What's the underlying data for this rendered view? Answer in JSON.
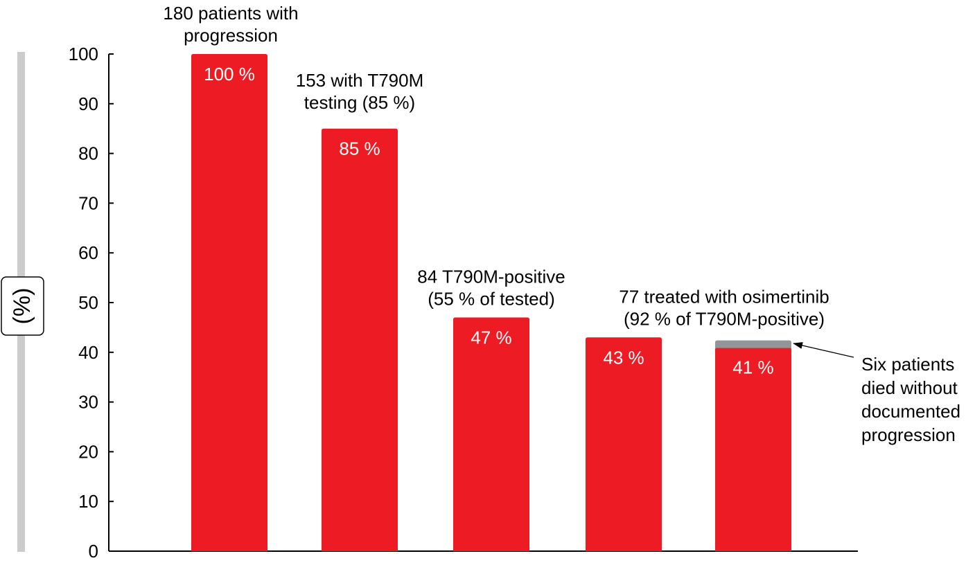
{
  "chart_data": {
    "type": "bar",
    "ylabel": "(%)",
    "ylim": [
      0,
      100
    ],
    "yticks": [
      "0",
      "10",
      "20",
      "30",
      "40",
      "50",
      "60",
      "70",
      "80",
      "90",
      "100"
    ],
    "grid": false,
    "bars": [
      {
        "value": 100,
        "value_label": "100 %",
        "annotation": [
          "180 patients with",
          "progression"
        ]
      },
      {
        "value": 85,
        "value_label": "85 %",
        "annotation": [
          "153 with T790M",
          "testing (85 %)"
        ]
      },
      {
        "value": 47,
        "value_label": "47 %",
        "annotation": [
          "84 T790M-positive",
          "(55 % of tested)"
        ]
      },
      {
        "value": 43,
        "value_label": "43 %",
        "annotation": [
          "77 treated with osimertinib",
          "(92 % of T790M-positive)"
        ]
      },
      {
        "value": 41,
        "value_label": "41 %",
        "annotation": [],
        "stack_value": 1.4
      }
    ],
    "callout": [
      "Six patients",
      "died without",
      "documented",
      "progression"
    ],
    "colors": {
      "bar": "#ed1c24",
      "stack": "#939598",
      "axis": "#000000",
      "value_text": "#ffffff",
      "ylabel_rail": "#cccccc"
    }
  }
}
